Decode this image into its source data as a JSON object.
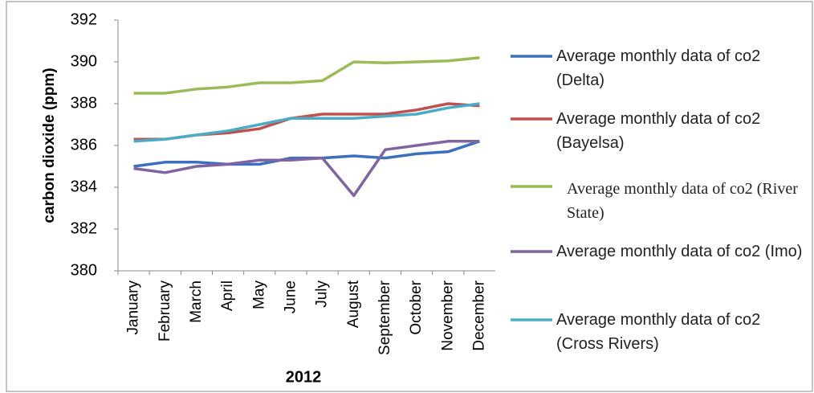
{
  "chart_data": {
    "type": "line",
    "y_label": "carbon dioxide (ppm)",
    "x_label": "2012",
    "categories": [
      "January",
      "February",
      "March",
      "April",
      "May",
      "June",
      "July",
      "August",
      "September",
      "October",
      "November",
      "December"
    ],
    "ylim": [
      380,
      392
    ],
    "yticks": [
      380,
      382,
      384,
      386,
      388,
      390,
      392
    ],
    "grid": false,
    "legend": "right",
    "series": [
      {
        "name": "Average monthly data of co2 (Delta)",
        "color": "#3a70bf",
        "values": [
          385.0,
          385.2,
          385.2,
          385.1,
          385.1,
          385.4,
          385.4,
          385.5,
          385.4,
          385.6,
          385.7,
          386.2
        ]
      },
      {
        "name": "Average monthly data of co2 (Bayelsa)",
        "color": "#c0504d",
        "values": [
          386.3,
          386.3,
          386.5,
          386.6,
          386.8,
          387.3,
          387.5,
          387.5,
          387.5,
          387.7,
          388.0,
          387.9
        ]
      },
      {
        "name": "Average monthly data of co2 (River State)",
        "color": "#9bbb59",
        "values": [
          388.5,
          388.5,
          388.7,
          388.8,
          389.0,
          389.0,
          389.1,
          390.0,
          389.95,
          390.0,
          390.05,
          390.2
        ]
      },
      {
        "name": "Average monthly data of co2 (Imo)",
        "color": "#8064a2",
        "values": [
          384.9,
          384.7,
          385.0,
          385.1,
          385.3,
          385.3,
          385.4,
          383.6,
          385.8,
          386.0,
          386.2,
          386.2
        ]
      },
      {
        "name": "Average monthly data of co2 (Cross Rivers)",
        "color": "#4bacc6",
        "values": [
          386.2,
          386.3,
          386.5,
          386.7,
          387.0,
          387.3,
          387.3,
          387.3,
          387.4,
          387.5,
          387.8,
          388.0
        ]
      }
    ]
  }
}
